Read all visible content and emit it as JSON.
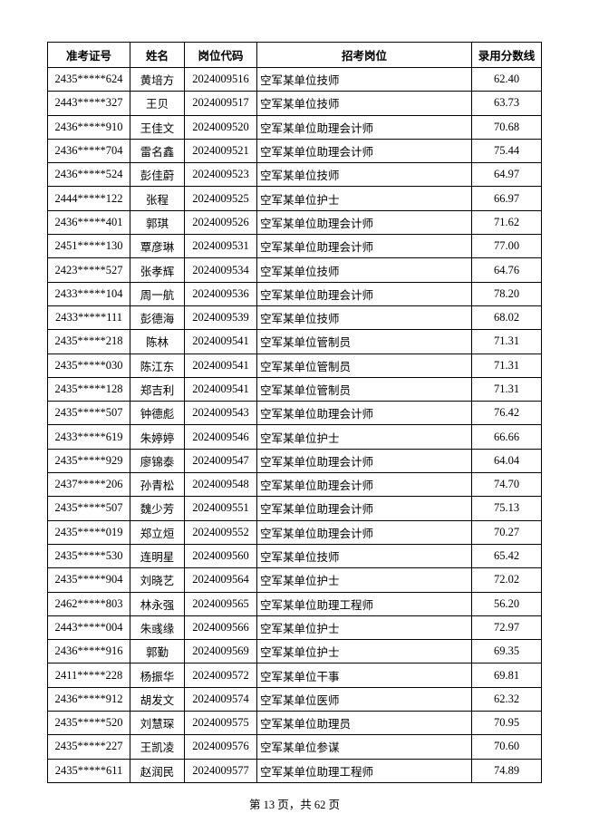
{
  "table": {
    "headers": [
      "准考证号",
      "姓名",
      "岗位代码",
      "招考岗位",
      "录用分数线"
    ],
    "rows": [
      [
        "2435*****624",
        "黄培方",
        "2024009516",
        "空军某单位技师",
        "62.40"
      ],
      [
        "2443*****327",
        "王贝",
        "2024009517",
        "空军某单位技师",
        "63.73"
      ],
      [
        "2436*****910",
        "王佳文",
        "2024009520",
        "空军某单位助理会计师",
        "70.68"
      ],
      [
        "2436*****704",
        "雷名鑫",
        "2024009521",
        "空军某单位助理会计师",
        "75.44"
      ],
      [
        "2436*****524",
        "彭佳蔚",
        "2024009523",
        "空军某单位技师",
        "64.97"
      ],
      [
        "2444*****122",
        "张程",
        "2024009525",
        "空军某单位护士",
        "66.97"
      ],
      [
        "2436*****401",
        "郭琪",
        "2024009526",
        "空军某单位助理会计师",
        "71.62"
      ],
      [
        "2451*****130",
        "覃彦琳",
        "2024009531",
        "空军某单位助理会计师",
        "77.00"
      ],
      [
        "2423*****527",
        "张孝辉",
        "2024009534",
        "空军某单位技师",
        "64.76"
      ],
      [
        "2433*****104",
        "周一航",
        "2024009536",
        "空军某单位助理会计师",
        "78.20"
      ],
      [
        "2433*****111",
        "彭德海",
        "2024009539",
        "空军某单位技师",
        "68.02"
      ],
      [
        "2435*****218",
        "陈林",
        "2024009541",
        "空军某单位管制员",
        "71.31"
      ],
      [
        "2435*****030",
        "陈江东",
        "2024009541",
        "空军某单位管制员",
        "71.31"
      ],
      [
        "2435*****128",
        "郑吉利",
        "2024009541",
        "空军某单位管制员",
        "71.31"
      ],
      [
        "2435*****507",
        "钟德彪",
        "2024009543",
        "空军某单位助理会计师",
        "76.42"
      ],
      [
        "2433*****619",
        "朱婷婷",
        "2024009546",
        "空军某单位护士",
        "66.66"
      ],
      [
        "2435*****929",
        "廖锦泰",
        "2024009547",
        "空军某单位助理会计师",
        "64.04"
      ],
      [
        "2437*****206",
        "孙青松",
        "2024009548",
        "空军某单位助理会计师",
        "74.70"
      ],
      [
        "2435*****507",
        "魏少芳",
        "2024009551",
        "空军某单位助理会计师",
        "75.13"
      ],
      [
        "2435*****019",
        "郑立烜",
        "2024009552",
        "空军某单位助理会计师",
        "70.27"
      ],
      [
        "2435*****530",
        "连明星",
        "2024009560",
        "空军某单位技师",
        "65.42"
      ],
      [
        "2435*****904",
        "刘晓艺",
        "2024009564",
        "空军某单位护士",
        "72.02"
      ],
      [
        "2462*****803",
        "林永强",
        "2024009565",
        "空军某单位助理工程师",
        "56.20"
      ],
      [
        "2443*****004",
        "朱彧缘",
        "2024009566",
        "空军某单位护士",
        "72.97"
      ],
      [
        "2436*****916",
        "郭勤",
        "2024009569",
        "空军某单位护士",
        "69.35"
      ],
      [
        "2411*****228",
        "杨振华",
        "2024009572",
        "空军某单位干事",
        "69.81"
      ],
      [
        "2436*****912",
        "胡发文",
        "2024009574",
        "空军某单位医师",
        "62.32"
      ],
      [
        "2435*****520",
        "刘慧琛",
        "2024009575",
        "空军某单位助理员",
        "70.95"
      ],
      [
        "2435*****227",
        "王凯凌",
        "2024009576",
        "空军某单位参谋",
        "70.60"
      ],
      [
        "2435*****611",
        "赵润民",
        "2024009577",
        "空军某单位助理工程师",
        "74.89"
      ]
    ]
  },
  "footer": {
    "page_info": "第 13 页，共 62 页"
  }
}
